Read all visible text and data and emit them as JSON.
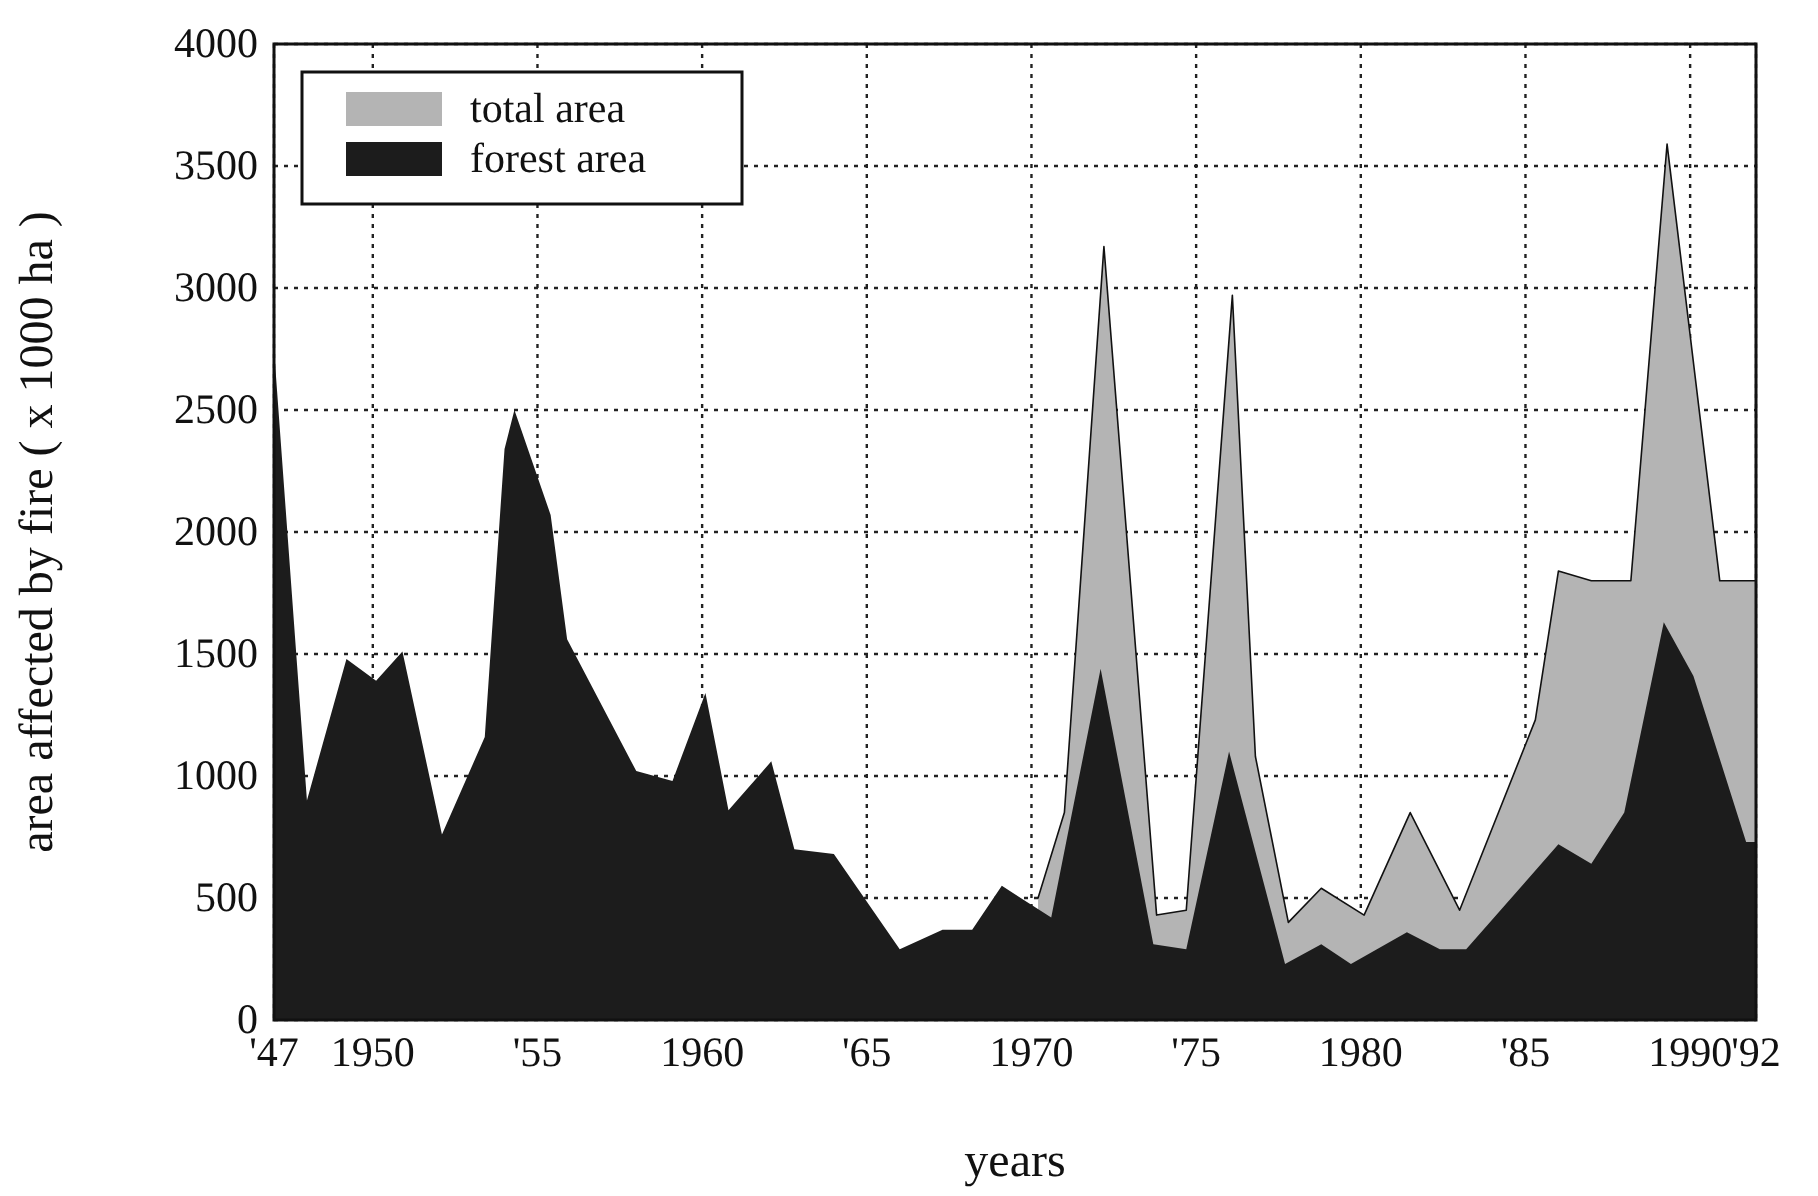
{
  "chart_data": {
    "type": "area",
    "xlabel": "years",
    "ylabel": "area affected by fire ( x 1000 ha )",
    "xlim": [
      1947,
      1992
    ],
    "ylim": [
      0,
      4000
    ],
    "xticks": [
      {
        "value": 1947,
        "label": "'47"
      },
      1950,
      {
        "value": 1955,
        "label": "'55"
      },
      1960,
      {
        "value": 1965,
        "label": "'65"
      },
      1970,
      {
        "value": 1975,
        "label": "'75"
      },
      1980,
      {
        "value": 1985,
        "label": "'85"
      },
      1990,
      {
        "value": 1992,
        "label": "'92"
      }
    ],
    "yticks": [
      0,
      500,
      1000,
      1500,
      2000,
      2500,
      3000,
      3500,
      4000
    ],
    "grid": true,
    "legend": "top left",
    "line_style": "solid",
    "series": [
      {
        "name": "total area",
        "color": "#b4b4b4",
        "x": [
          1970.2,
          1971,
          1972.2,
          1973.8,
          1974.7,
          1976.1,
          1976.8,
          1977.8,
          1978.8,
          1980.1,
          1981.5,
          1983,
          1985.3,
          1986,
          1987,
          1988.2,
          1989.3,
          1990.9,
          1992
        ],
        "values": [
          500,
          850,
          3170,
          430,
          450,
          2970,
          1080,
          400,
          540,
          430,
          850,
          450,
          1230,
          1840,
          1800,
          1800,
          3590,
          1800,
          1800
        ]
      },
      {
        "name": "forest area",
        "color": "#1c1c1c",
        "x": [
          1947,
          1948,
          1949.2,
          1950.1,
          1950.9,
          1952.1,
          1953.4,
          1954,
          1954.3,
          1955.4,
          1955.9,
          1958,
          1959.1,
          1960.1,
          1960.8,
          1962.1,
          1962.8,
          1964,
          1966,
          1967.3,
          1968.2,
          1969.1,
          1970.6,
          1972.1,
          1973.7,
          1974.7,
          1976,
          1977.7,
          1978.8,
          1979.7,
          1981.4,
          1982.4,
          1983.2,
          1986,
          1987,
          1988,
          1989.2,
          1990.1,
          1991.7,
          1992
        ],
        "values": [
          2750,
          900,
          1480,
          1390,
          1510,
          760,
          1160,
          2340,
          2500,
          2070,
          1560,
          1020,
          980,
          1340,
          860,
          1060,
          700,
          680,
          290,
          370,
          370,
          550,
          420,
          1440,
          310,
          290,
          1100,
          230,
          310,
          230,
          360,
          290,
          290,
          720,
          640,
          850,
          1630,
          1410,
          730,
          730
        ]
      }
    ]
  }
}
